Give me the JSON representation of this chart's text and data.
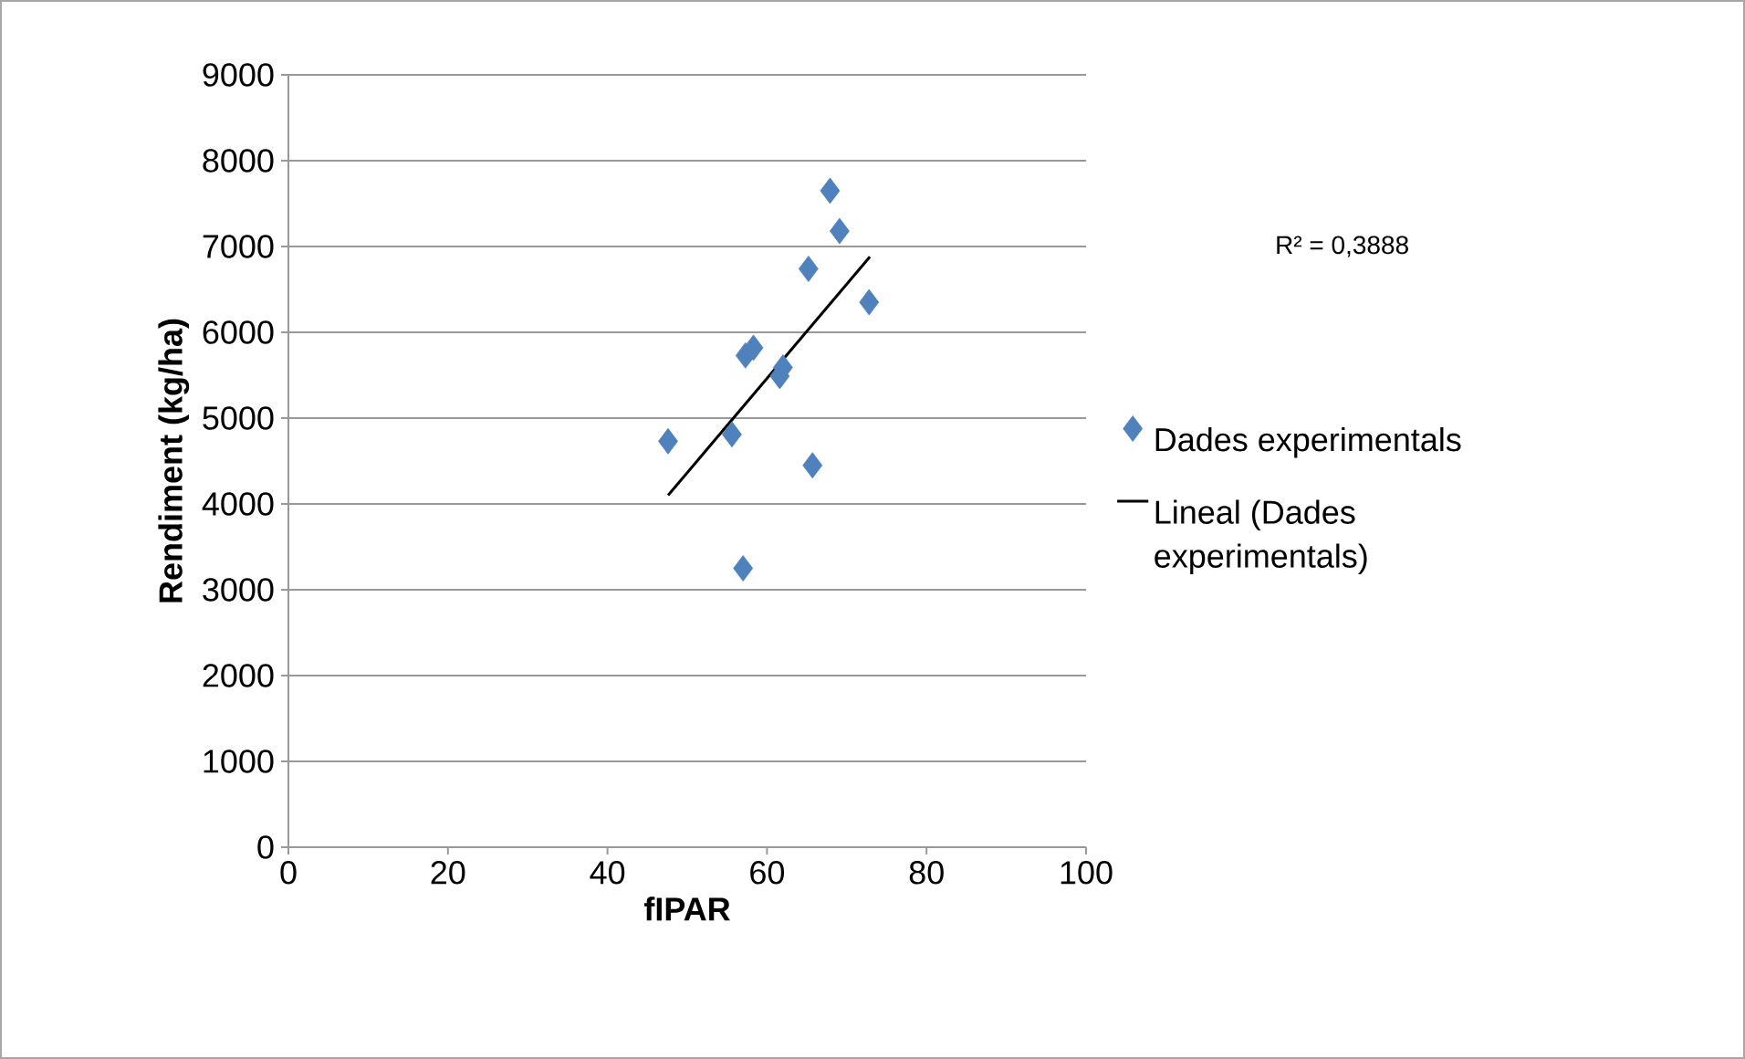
{
  "chart_data": {
    "type": "scatter",
    "xlabel": "fIPAR",
    "ylabel": "Rendiment (kg/ha)",
    "xlim": [
      0,
      100
    ],
    "xticks": [
      0,
      20,
      40,
      60,
      80,
      100
    ],
    "ylim": [
      0,
      9000
    ],
    "yticks": [
      0,
      1000,
      2000,
      3000,
      4000,
      5000,
      6000,
      7000,
      8000,
      9000
    ],
    "grid": "y",
    "legend": "right",
    "marker": "diamond",
    "annotations": [
      "R² = 0,3888"
    ],
    "series": [
      {
        "name": "Dades experimentals",
        "color": "#4f81bd",
        "x": [
          67.9,
          69.1,
          65.2,
          72.8,
          57.3,
          58.3,
          62.0,
          61.6,
          47.6,
          55.6,
          65.7,
          57.0
        ],
        "values": [
          7650,
          7180,
          6740,
          6350,
          5730,
          5820,
          5590,
          5490,
          4730,
          4810,
          4450,
          3250
        ]
      },
      {
        "name": "Lineal (Dades experimentals)",
        "type": "line",
        "marker": "none",
        "color": "#000000",
        "x": [
          47.6,
          72.9
        ],
        "values": [
          4100,
          6880
        ]
      }
    ]
  }
}
